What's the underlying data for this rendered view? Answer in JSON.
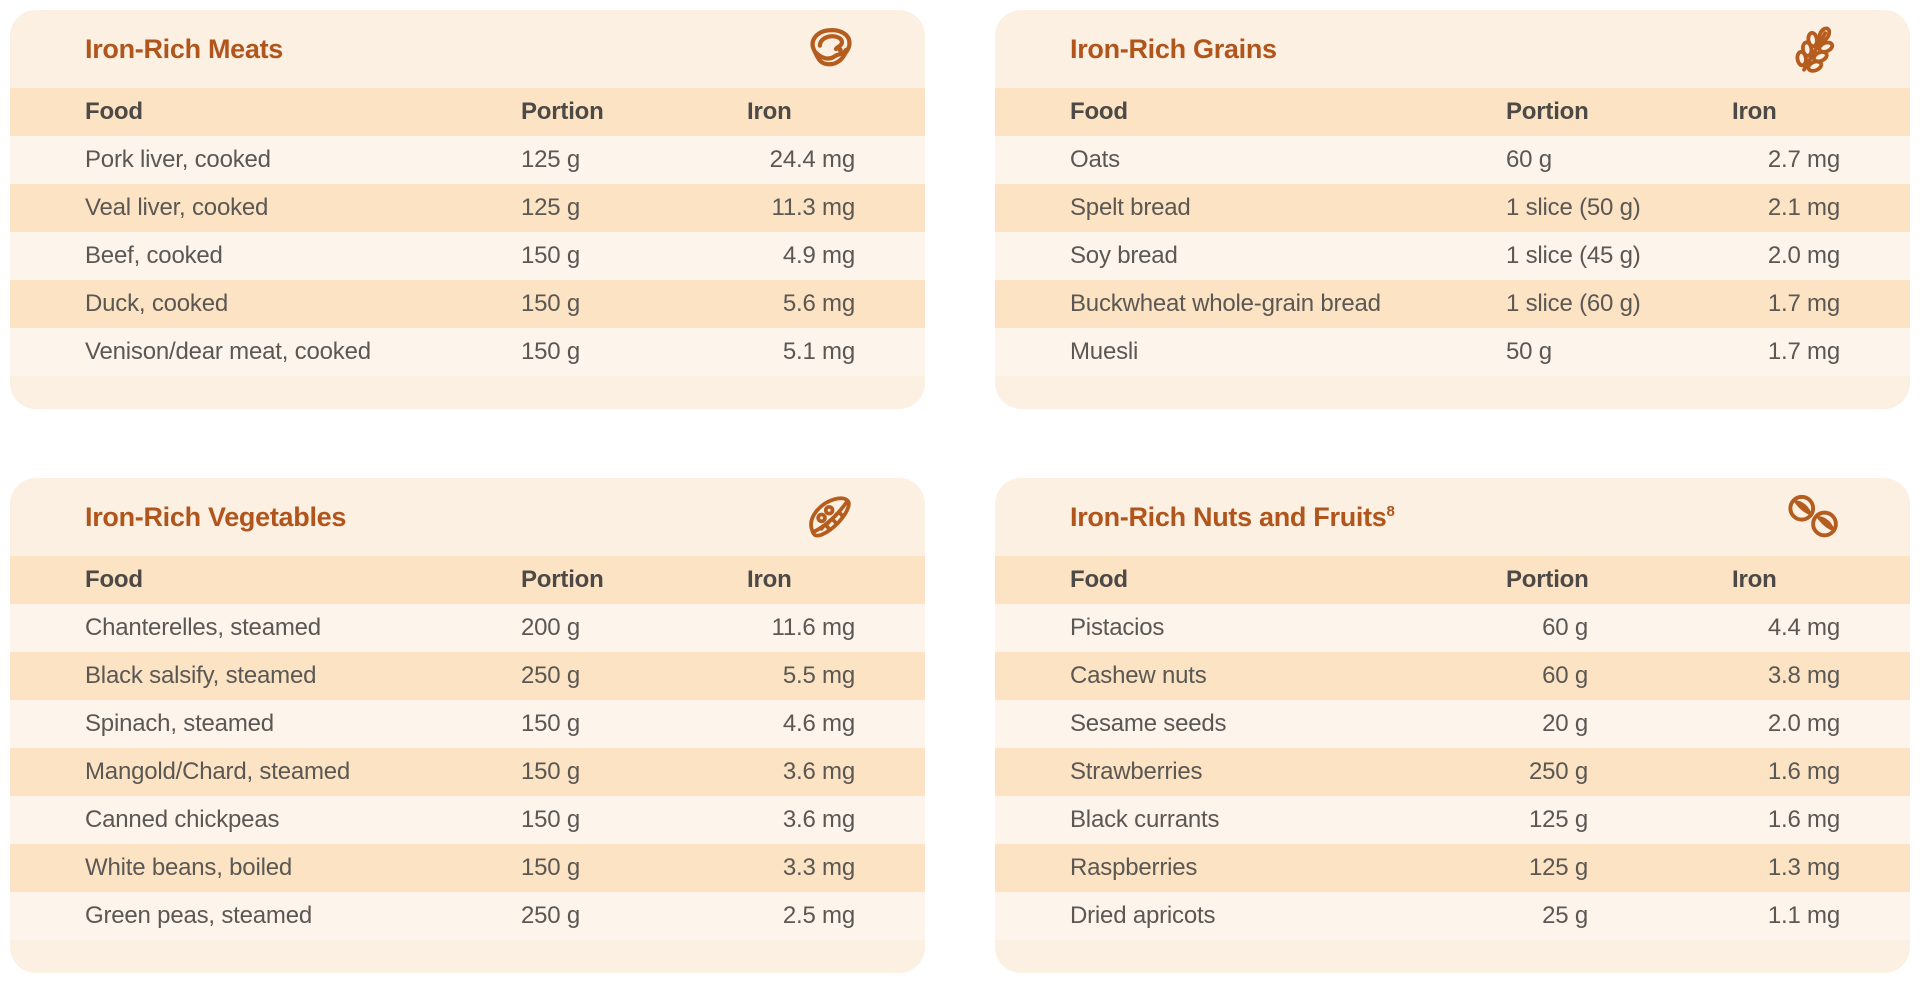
{
  "theme": {
    "page_bg": "#ffffff",
    "card_bg": "#fcf0e2",
    "stripe": "#fbe3c4",
    "row_light": "#fdf4ec",
    "title_color": "#b0551c",
    "icon_color": "#b45d1f",
    "header_text": "#4c4946",
    "body_text": "#5b5854"
  },
  "cards": [
    {
      "id": "meats",
      "title": "Iron-Rich Meats",
      "title_sup": "",
      "icon": "steak",
      "columns": [
        "Food",
        "Portion",
        "Iron"
      ],
      "rows": [
        {
          "food": "Pork liver, cooked",
          "portion": "125 g",
          "iron": "24.4 mg"
        },
        {
          "food": "Veal liver, cooked",
          "portion": "125 g",
          "iron": "11.3 mg"
        },
        {
          "food": "Beef, cooked",
          "portion": "150 g",
          "iron": "4.9 mg"
        },
        {
          "food": "Duck, cooked",
          "portion": "150 g",
          "iron": "5.6 mg"
        },
        {
          "food": "Venison/dear meat, cooked",
          "portion": "150 g",
          "iron": "5.1 mg"
        }
      ]
    },
    {
      "id": "grains",
      "title": "Iron-Rich Grains",
      "title_sup": "",
      "icon": "wheat",
      "columns": [
        "Food",
        "Portion",
        "Iron"
      ],
      "rows": [
        {
          "food": "Oats",
          "portion": "60 g",
          "iron": "2.7 mg"
        },
        {
          "food": "Spelt bread",
          "portion": "1 slice (50 g)",
          "iron": "2.1 mg"
        },
        {
          "food": "Soy bread",
          "portion": "1 slice (45 g)",
          "iron": "2.0 mg"
        },
        {
          "food": "Buckwheat whole-grain bread",
          "portion": "1 slice (60 g)",
          "iron": "1.7 mg"
        },
        {
          "food": "Muesli",
          "portion": "50 g",
          "iron": "1.7 mg"
        }
      ]
    },
    {
      "id": "vegetables",
      "title": "Iron-Rich Vegetables",
      "title_sup": "",
      "icon": "peapod",
      "columns": [
        "Food",
        "Portion",
        "Iron"
      ],
      "rows": [
        {
          "food": "Chanterelles, steamed",
          "portion": "200 g",
          "iron": "11.6 mg"
        },
        {
          "food": "Black salsify, steamed",
          "portion": "250 g",
          "iron": "5.5 mg"
        },
        {
          "food": "Spinach, steamed",
          "portion": "150 g",
          "iron": "4.6 mg"
        },
        {
          "food": "Mangold/Chard, steamed",
          "portion": "150 g",
          "iron": "3.6 mg"
        },
        {
          "food": "Canned chickpeas",
          "portion": "150 g",
          "iron": "3.6 mg"
        },
        {
          "food": "White beans, boiled",
          "portion": "150 g",
          "iron": "3.3 mg"
        },
        {
          "food": "Green peas, steamed",
          "portion": "250 g",
          "iron": "2.5 mg"
        }
      ]
    },
    {
      "id": "nuts",
      "title": "Iron-Rich Nuts and Fruits",
      "title_sup": "8",
      "icon": "nuts",
      "columns": [
        "Food",
        "Portion",
        "Iron"
      ],
      "rows": [
        {
          "food": "Pistacios",
          "portion": "60 g",
          "iron": "4.4 mg"
        },
        {
          "food": "Cashew nuts",
          "portion": "60 g",
          "iron": "3.8 mg"
        },
        {
          "food": "Sesame seeds",
          "portion": "20 g",
          "iron": "2.0 mg"
        },
        {
          "food": "Strawberries",
          "portion": "250 g",
          "iron": "1.6 mg"
        },
        {
          "food": "Black currants",
          "portion": "125 g",
          "iron": "1.6 mg"
        },
        {
          "food": "Raspberries",
          "portion": "125 g",
          "iron": "1.3 mg"
        },
        {
          "food": "Dried apricots",
          "portion": "25 g",
          "iron": "1.1 mg"
        }
      ]
    }
  ]
}
